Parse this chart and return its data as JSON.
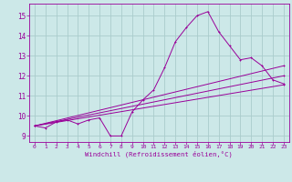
{
  "background_color": "#cce8e8",
  "grid_color": "#aacccc",
  "line_color": "#990099",
  "xlabel": "Windchill (Refroidissement éolien,°C)",
  "xlim": [
    -0.5,
    23.5
  ],
  "ylim": [
    8.7,
    15.6
  ],
  "yticks": [
    9,
    10,
    11,
    12,
    13,
    14,
    15
  ],
  "xticks": [
    0,
    1,
    2,
    3,
    4,
    5,
    6,
    7,
    8,
    9,
    10,
    11,
    12,
    13,
    14,
    15,
    16,
    17,
    18,
    19,
    20,
    21,
    22,
    23
  ],
  "series1_x": [
    0,
    1,
    2,
    3,
    4,
    5,
    6,
    7,
    8,
    9,
    10,
    11,
    12,
    13,
    14,
    15,
    16,
    17,
    18,
    19,
    20,
    21,
    22,
    23
  ],
  "series1_y": [
    9.5,
    9.4,
    9.7,
    9.8,
    9.6,
    9.8,
    9.9,
    9.0,
    9.0,
    10.2,
    10.8,
    11.3,
    12.4,
    13.7,
    14.4,
    15.0,
    15.2,
    14.2,
    13.5,
    12.8,
    12.9,
    12.5,
    11.8,
    11.6
  ],
  "series2_x": [
    0,
    23
  ],
  "series2_y": [
    9.5,
    11.55
  ],
  "series3_x": [
    0,
    23
  ],
  "series3_y": [
    9.5,
    12.0
  ],
  "series4_x": [
    0,
    23
  ],
  "series4_y": [
    9.5,
    12.5
  ]
}
